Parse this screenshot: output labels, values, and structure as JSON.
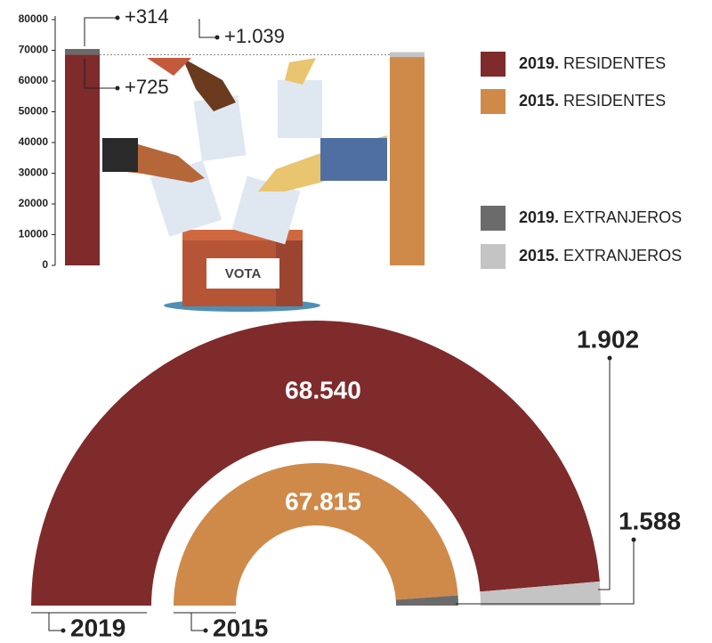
{
  "chart_data": [
    {
      "type": "stacked-bar",
      "categories": [
        null,
        null
      ],
      "series": [
        {
          "name": "2019. RESIDENTES",
          "color": "#7f2a2b",
          "values": [
            68540,
            null
          ]
        },
        {
          "name": "2015. RESIDENTES",
          "color": "#cf8a4a",
          "values": [
            null,
            67815
          ]
        },
        {
          "name": "2019. EXTRANJEROS",
          "color": "#6b6b6b",
          "values": [
            1902,
            null
          ]
        },
        {
          "name": "2015. EXTRANJEROS",
          "color": "#c4c4c4",
          "values": [
            null,
            1588
          ]
        }
      ],
      "ylim": [
        0,
        80000
      ],
      "yticks": [
        0,
        10000,
        20000,
        30000,
        40000,
        50000,
        60000,
        70000,
        80000
      ],
      "annotations": [
        "+314",
        "+725",
        "+1.039"
      ]
    },
    {
      "type": "half-donut",
      "categories": [
        "2019",
        "2015"
      ],
      "rings": [
        {
          "values": [
            68540,
            1902
          ],
          "value_labels": [
            "68.540",
            "1.902"
          ],
          "colors": [
            "#7f2a2b",
            "#c4c4c4"
          ]
        },
        {
          "values": [
            67815,
            1588
          ],
          "value_labels": [
            "67.815",
            "1.588"
          ],
          "colors": [
            "#cf8a4a",
            "#6b6b6b"
          ]
        }
      ]
    }
  ],
  "illustration": {
    "box_label": "VOTA"
  }
}
